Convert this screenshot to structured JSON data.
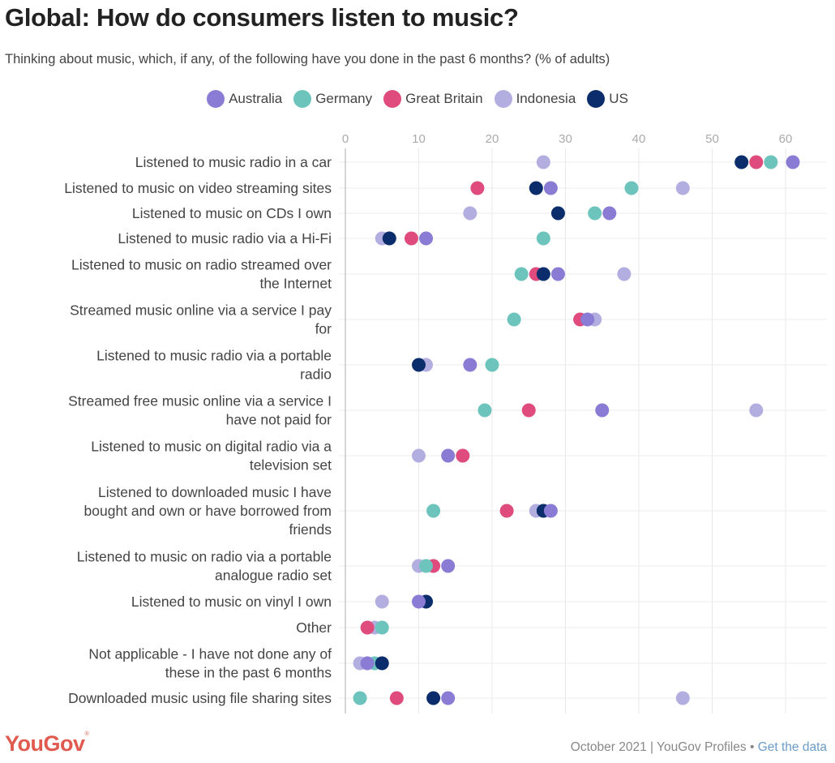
{
  "header": {
    "title": "Global: How do consumers listen to music?",
    "subtitle": "Thinking about music, which, if any, of the following have you done in the past 6 months? (% of adults)"
  },
  "footer": {
    "logo": "YouGov",
    "source": "October 2021 | YouGov Profiles",
    "separator": "•",
    "link": "Get the data"
  },
  "chart_data": {
    "type": "scatter",
    "title": "Global: How do consumers listen to music?",
    "subtitle": "Thinking about music, which, if any, of the following have you done in the past 6 months? (% of adults)",
    "xlabel": "",
    "ylabel": "",
    "xlim": [
      0,
      65
    ],
    "x_ticks": [
      0,
      10,
      20,
      30,
      40,
      50,
      60
    ],
    "x_tick_labels": [
      "0",
      "10",
      "20",
      "30",
      "40",
      "50",
      "60"
    ],
    "grid": true,
    "legend_position": "top-center",
    "categories": [
      {
        "lines": [
          "Listened to music radio in a car"
        ]
      },
      {
        "lines": [
          "Listened to music on video streaming sites"
        ]
      },
      {
        "lines": [
          "Listened to music on CDs I own"
        ]
      },
      {
        "lines": [
          "Listened to music radio via a Hi-Fi"
        ]
      },
      {
        "lines": [
          "Listened to music on radio streamed over",
          "the Internet"
        ]
      },
      {
        "lines": [
          "Streamed music online via a service I pay",
          "for"
        ]
      },
      {
        "lines": [
          "Listened to music radio via a portable",
          "radio"
        ]
      },
      {
        "lines": [
          "Streamed free music online via a service I",
          "have not paid for"
        ]
      },
      {
        "lines": [
          "Listened to music on digital radio via a",
          "television set"
        ]
      },
      {
        "lines": [
          "Listened to downloaded music I have",
          "bought and own or have borrowed from",
          "friends"
        ]
      },
      {
        "lines": [
          "Listened to music on radio via a portable",
          "analogue radio set"
        ]
      },
      {
        "lines": [
          "Listened to music on vinyl I own"
        ]
      },
      {
        "lines": [
          "Other"
        ]
      },
      {
        "lines": [
          "Not applicable - I have not done any of",
          "these in the past 6 months"
        ]
      },
      {
        "lines": [
          "Downloaded music using file sharing sites"
        ]
      }
    ],
    "series": [
      {
        "name": "Indonesia",
        "color": "#b3aee0",
        "values": [
          27,
          46,
          17,
          5,
          38,
          34,
          11,
          56,
          10,
          26,
          10,
          5,
          4,
          2,
          46
        ]
      },
      {
        "name": "Great Britain",
        "color": "#de4b7c",
        "values": [
          56,
          18,
          null,
          9,
          26,
          32,
          null,
          25,
          16,
          22,
          12,
          null,
          3,
          null,
          7
        ]
      },
      {
        "name": "Germany",
        "color": "#6cc4bd",
        "values": [
          58,
          39,
          34,
          27,
          24,
          23,
          20,
          19,
          null,
          12,
          11,
          null,
          5,
          4,
          2
        ]
      },
      {
        "name": "US",
        "color": "#0c2d6b",
        "values": [
          54,
          26,
          29,
          6,
          27,
          null,
          10,
          null,
          null,
          27,
          null,
          11,
          null,
          5,
          12
        ]
      },
      {
        "name": "Australia",
        "color": "#8a7bd4",
        "values": [
          61,
          28,
          36,
          11,
          29,
          33,
          17,
          35,
          14,
          28,
          14,
          10,
          null,
          3,
          14
        ]
      }
    ],
    "legend_order": [
      "Australia",
      "Germany",
      "Great Britain",
      "Indonesia",
      "US"
    ]
  }
}
